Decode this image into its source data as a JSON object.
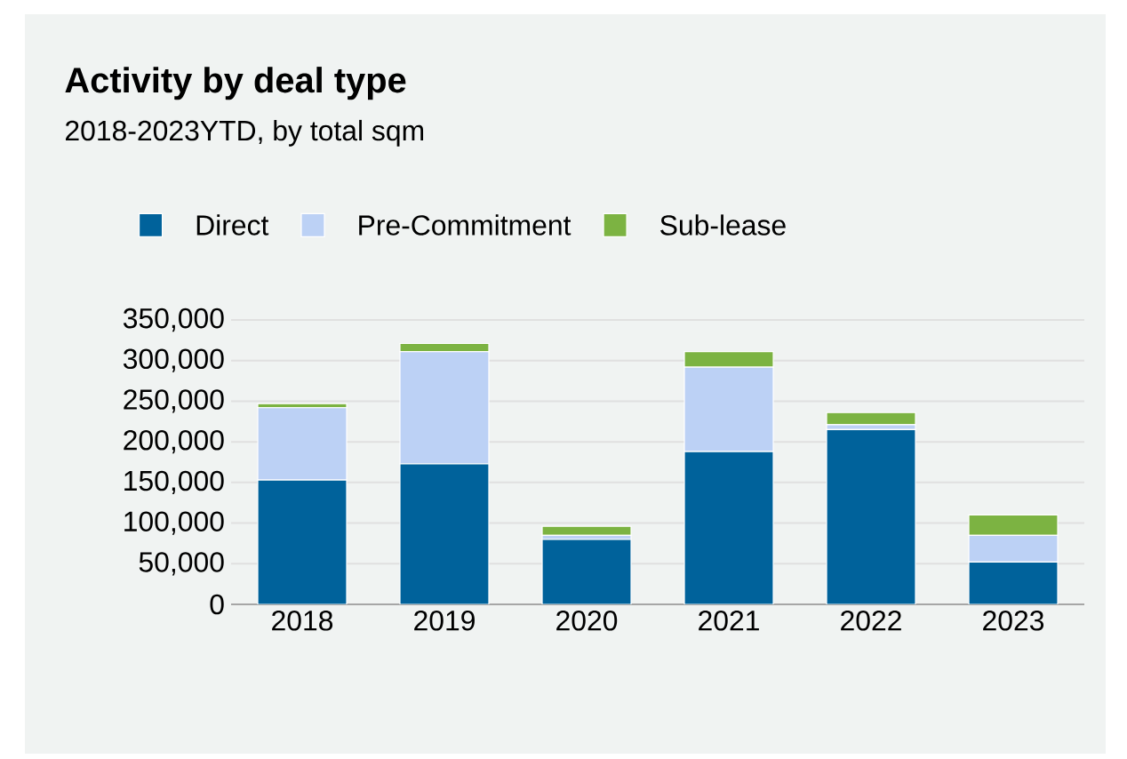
{
  "chart_data": {
    "type": "bar",
    "title": "Activity by deal type",
    "subtitle": "2018-2023YTD, by total sqm",
    "categories": [
      "2018",
      "2019",
      "2020",
      "2021",
      "2022",
      "2023"
    ],
    "stacked": true,
    "series": [
      {
        "name": "Direct",
        "color": "#00629b",
        "values": [
          153000,
          173000,
          80000,
          188000,
          215000,
          52000
        ]
      },
      {
        "name": "Pre-Commitment",
        "color": "#bcd1f5",
        "values": [
          89000,
          138000,
          5000,
          104000,
          6000,
          33000
        ]
      },
      {
        "name": "Sub-lease",
        "color": "#7cb342",
        "values": [
          5000,
          10000,
          11000,
          19000,
          15000,
          25000
        ]
      }
    ],
    "ylim": [
      0,
      350000
    ],
    "yticks": [
      {
        "value": 0,
        "label": "0"
      },
      {
        "value": 50000,
        "label": "50,000"
      },
      {
        "value": 100000,
        "label": "100,000"
      },
      {
        "value": 150000,
        "label": "150,000"
      },
      {
        "value": 200000,
        "label": "200,000"
      },
      {
        "value": 250000,
        "label": "250,000"
      },
      {
        "value": 300000,
        "label": "300,000"
      },
      {
        "value": 350000,
        "label": "350,000"
      }
    ],
    "grid": "y",
    "legend": "top left"
  }
}
